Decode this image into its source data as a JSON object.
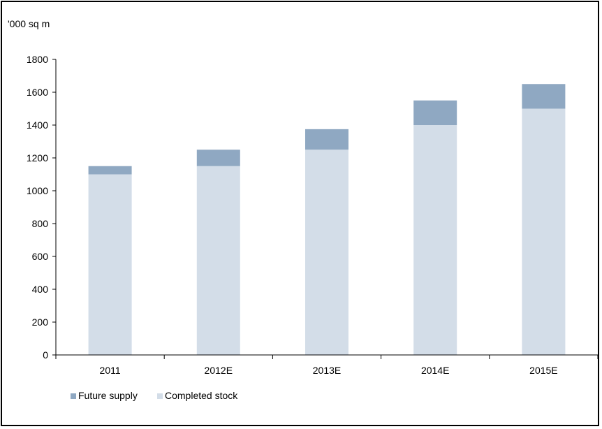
{
  "chart_data": {
    "type": "bar",
    "stacked": true,
    "ylabel": "'000 sq m",
    "categories": [
      "2011",
      "2012E",
      "2013E",
      "2014E",
      "2015E"
    ],
    "ylim": [
      0,
      1800
    ],
    "yticks": [
      0,
      200,
      400,
      600,
      800,
      1000,
      1200,
      1400,
      1600,
      1800
    ],
    "grid": false,
    "legend_position": "bottom-left",
    "series": [
      {
        "name": "Completed stock",
        "values": [
          1100,
          1150,
          1250,
          1400,
          1500
        ],
        "color": "#d3dde8"
      },
      {
        "name": "Future supply",
        "values": [
          50,
          100,
          125,
          150,
          150
        ],
        "color": "#8fa8c2"
      }
    ],
    "legend": [
      "Future supply",
      "Completed stock"
    ]
  }
}
